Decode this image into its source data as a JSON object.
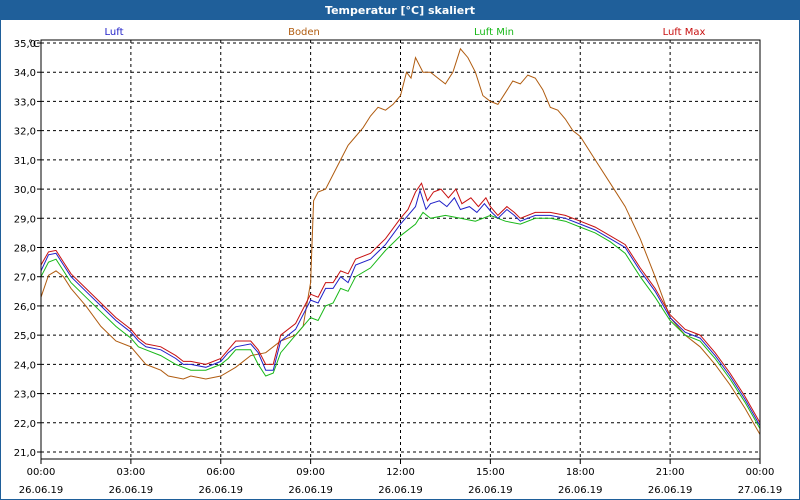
{
  "window": {
    "title": "Temperatur [°C] skaliert"
  },
  "chart_data": {
    "type": "line",
    "title": "Temperatur [°C] skaliert",
    "ylabel": "°C",
    "xlabel": "",
    "ylim": [
      21.0,
      35.0
    ],
    "xlim": [
      0,
      24
    ],
    "grid": true,
    "y_ticks": [
      "21,0",
      "22,0",
      "23,0",
      "24,0",
      "25,0",
      "26,0",
      "27,0",
      "28,0",
      "29,0",
      "30,0",
      "31,0",
      "32,0",
      "33,0",
      "34,0",
      "35,0"
    ],
    "x_ticks": [
      {
        "time": "00:00",
        "date": "26.06.19"
      },
      {
        "time": "03:00",
        "date": "26.06.19"
      },
      {
        "time": "06:00",
        "date": "26.06.19"
      },
      {
        "time": "09:00",
        "date": "26.06.19"
      },
      {
        "time": "12:00",
        "date": "26.06.19"
      },
      {
        "time": "15:00",
        "date": "26.06.19"
      },
      {
        "time": "18:00",
        "date": "26.06.19"
      },
      {
        "time": "21:00",
        "date": "26.06.19"
      },
      {
        "time": "00:00",
        "date": "27.06.19"
      }
    ],
    "series": [
      {
        "name": "Luft",
        "color": "#2020c8",
        "points": [
          [
            0,
            27.2
          ],
          [
            0.25,
            27.75
          ],
          [
            0.5,
            27.8
          ],
          [
            0.75,
            27.4
          ],
          [
            1,
            27.0
          ],
          [
            1.5,
            26.5
          ],
          [
            2,
            26.0
          ],
          [
            2.5,
            25.5
          ],
          [
            3,
            25.1
          ],
          [
            3.25,
            24.8
          ],
          [
            3.5,
            24.6
          ],
          [
            4,
            24.5
          ],
          [
            4.5,
            24.2
          ],
          [
            4.75,
            24.0
          ],
          [
            5,
            24.0
          ],
          [
            5.5,
            23.9
          ],
          [
            6,
            24.1
          ],
          [
            6.25,
            24.4
          ],
          [
            6.5,
            24.6
          ],
          [
            7,
            24.7
          ],
          [
            7.25,
            24.4
          ],
          [
            7.5,
            23.8
          ],
          [
            7.75,
            23.8
          ],
          [
            8,
            24.8
          ],
          [
            8.5,
            25.2
          ],
          [
            9,
            26.2
          ],
          [
            9.25,
            26.1
          ],
          [
            9.5,
            26.6
          ],
          [
            9.75,
            26.6
          ],
          [
            10,
            27.0
          ],
          [
            10.25,
            26.8
          ],
          [
            10.5,
            27.4
          ],
          [
            11,
            27.6
          ],
          [
            11.5,
            28.1
          ],
          [
            12,
            28.8
          ],
          [
            12.25,
            29.1
          ],
          [
            12.5,
            29.4
          ],
          [
            12.65,
            29.95
          ],
          [
            12.85,
            29.3
          ],
          [
            13,
            29.5
          ],
          [
            13.3,
            29.6
          ],
          [
            13.55,
            29.4
          ],
          [
            13.8,
            29.7
          ],
          [
            14,
            29.3
          ],
          [
            14.3,
            29.4
          ],
          [
            14.55,
            29.2
          ],
          [
            14.8,
            29.5
          ],
          [
            15,
            29.25
          ],
          [
            15.25,
            29.0
          ],
          [
            15.55,
            29.3
          ],
          [
            15.8,
            29.1
          ],
          [
            16,
            28.9
          ],
          [
            16.5,
            29.1
          ],
          [
            17,
            29.1
          ],
          [
            17.5,
            29.0
          ],
          [
            18,
            28.8
          ],
          [
            18.5,
            28.6
          ],
          [
            19,
            28.3
          ],
          [
            19.5,
            28.0
          ],
          [
            20,
            27.2
          ],
          [
            20.5,
            26.5
          ],
          [
            21,
            25.6
          ],
          [
            21.5,
            25.1
          ],
          [
            22,
            24.9
          ],
          [
            22.5,
            24.3
          ],
          [
            23,
            23.6
          ],
          [
            23.5,
            22.8
          ],
          [
            24,
            21.9
          ]
        ]
      },
      {
        "name": "Boden",
        "color": "#b05c10",
        "points": [
          [
            0,
            26.3
          ],
          [
            0.25,
            27.05
          ],
          [
            0.5,
            27.2
          ],
          [
            0.75,
            27.0
          ],
          [
            1,
            26.6
          ],
          [
            1.5,
            26.0
          ],
          [
            2,
            25.3
          ],
          [
            2.5,
            24.8
          ],
          [
            3,
            24.6
          ],
          [
            3.5,
            24.0
          ],
          [
            4,
            23.8
          ],
          [
            4.25,
            23.6
          ],
          [
            4.75,
            23.5
          ],
          [
            5,
            23.6
          ],
          [
            5.5,
            23.5
          ],
          [
            6,
            23.6
          ],
          [
            6.5,
            23.9
          ],
          [
            7,
            24.3
          ],
          [
            7.5,
            24.4
          ],
          [
            8,
            24.8
          ],
          [
            8.5,
            25.0
          ],
          [
            8.75,
            25.3
          ],
          [
            9,
            26.8
          ],
          [
            9.1,
            29.6
          ],
          [
            9.25,
            29.9
          ],
          [
            9.5,
            30.0
          ],
          [
            9.75,
            30.5
          ],
          [
            10,
            31.0
          ],
          [
            10.25,
            31.5
          ],
          [
            10.5,
            31.8
          ],
          [
            10.75,
            32.1
          ],
          [
            11,
            32.5
          ],
          [
            11.25,
            32.8
          ],
          [
            11.5,
            32.7
          ],
          [
            11.75,
            32.9
          ],
          [
            12,
            33.2
          ],
          [
            12.2,
            34.0
          ],
          [
            12.35,
            33.8
          ],
          [
            12.5,
            34.5
          ],
          [
            12.75,
            34.0
          ],
          [
            13,
            34.0
          ],
          [
            13.25,
            33.8
          ],
          [
            13.5,
            33.6
          ],
          [
            13.75,
            34.0
          ],
          [
            14,
            34.8
          ],
          [
            14.25,
            34.5
          ],
          [
            14.5,
            34.0
          ],
          [
            14.75,
            33.2
          ],
          [
            15,
            33.0
          ],
          [
            15.25,
            32.9
          ],
          [
            15.5,
            33.3
          ],
          [
            15.75,
            33.7
          ],
          [
            16,
            33.6
          ],
          [
            16.25,
            33.9
          ],
          [
            16.5,
            33.8
          ],
          [
            16.75,
            33.4
          ],
          [
            17,
            32.8
          ],
          [
            17.25,
            32.7
          ],
          [
            17.5,
            32.4
          ],
          [
            17.75,
            32.0
          ],
          [
            18,
            31.8
          ],
          [
            18.5,
            31.0
          ],
          [
            19,
            30.2
          ],
          [
            19.5,
            29.4
          ],
          [
            20,
            28.3
          ],
          [
            20.5,
            27.0
          ],
          [
            21,
            25.6
          ],
          [
            21.5,
            25.0
          ],
          [
            22,
            24.6
          ],
          [
            22.5,
            24.0
          ],
          [
            23,
            23.3
          ],
          [
            23.5,
            22.5
          ],
          [
            24,
            21.6
          ]
        ]
      },
      {
        "name": "Luft Min",
        "color": "#18b818",
        "points": [
          [
            0,
            27.0
          ],
          [
            0.25,
            27.5
          ],
          [
            0.5,
            27.6
          ],
          [
            0.75,
            27.2
          ],
          [
            1,
            26.8
          ],
          [
            1.5,
            26.3
          ],
          [
            2,
            25.8
          ],
          [
            2.5,
            25.3
          ],
          [
            3,
            24.9
          ],
          [
            3.25,
            24.6
          ],
          [
            3.5,
            24.5
          ],
          [
            4,
            24.3
          ],
          [
            4.5,
            24.0
          ],
          [
            4.75,
            23.9
          ],
          [
            5,
            23.8
          ],
          [
            5.5,
            23.8
          ],
          [
            6,
            24.0
          ],
          [
            6.25,
            24.2
          ],
          [
            6.5,
            24.5
          ],
          [
            7,
            24.5
          ],
          [
            7.25,
            24.0
          ],
          [
            7.5,
            23.6
          ],
          [
            7.75,
            23.7
          ],
          [
            8,
            24.4
          ],
          [
            8.5,
            25.0
          ],
          [
            9,
            25.6
          ],
          [
            9.25,
            25.5
          ],
          [
            9.5,
            26.0
          ],
          [
            9.75,
            26.1
          ],
          [
            10,
            26.6
          ],
          [
            10.25,
            26.5
          ],
          [
            10.5,
            27.0
          ],
          [
            11,
            27.3
          ],
          [
            11.5,
            27.9
          ],
          [
            12,
            28.4
          ],
          [
            12.5,
            28.8
          ],
          [
            12.75,
            29.2
          ],
          [
            13,
            29.0
          ],
          [
            13.5,
            29.1
          ],
          [
            14,
            29.0
          ],
          [
            14.5,
            28.9
          ],
          [
            15,
            29.1
          ],
          [
            15.5,
            28.9
          ],
          [
            16,
            28.8
          ],
          [
            16.5,
            29.0
          ],
          [
            17,
            29.0
          ],
          [
            17.5,
            28.9
          ],
          [
            18,
            28.7
          ],
          [
            18.5,
            28.5
          ],
          [
            19,
            28.2
          ],
          [
            19.5,
            27.8
          ],
          [
            20,
            27.0
          ],
          [
            20.5,
            26.3
          ],
          [
            21,
            25.5
          ],
          [
            21.5,
            25.0
          ],
          [
            22,
            24.8
          ],
          [
            22.5,
            24.2
          ],
          [
            23,
            23.5
          ],
          [
            23.5,
            22.7
          ],
          [
            24,
            21.8
          ]
        ]
      },
      {
        "name": "Luft Max",
        "color": "#c81010",
        "points": [
          [
            0,
            27.4
          ],
          [
            0.25,
            27.85
          ],
          [
            0.5,
            27.9
          ],
          [
            0.75,
            27.5
          ],
          [
            1,
            27.1
          ],
          [
            1.5,
            26.6
          ],
          [
            2,
            26.1
          ],
          [
            2.5,
            25.6
          ],
          [
            3,
            25.2
          ],
          [
            3.25,
            24.9
          ],
          [
            3.5,
            24.7
          ],
          [
            4,
            24.6
          ],
          [
            4.5,
            24.3
          ],
          [
            4.75,
            24.1
          ],
          [
            5,
            24.1
          ],
          [
            5.5,
            24.0
          ],
          [
            6,
            24.2
          ],
          [
            6.25,
            24.5
          ],
          [
            6.5,
            24.8
          ],
          [
            7,
            24.8
          ],
          [
            7.25,
            24.5
          ],
          [
            7.5,
            24.0
          ],
          [
            7.75,
            24.0
          ],
          [
            8,
            25.0
          ],
          [
            8.5,
            25.4
          ],
          [
            9,
            26.4
          ],
          [
            9.25,
            26.3
          ],
          [
            9.5,
            26.8
          ],
          [
            9.75,
            26.8
          ],
          [
            10,
            27.2
          ],
          [
            10.25,
            27.1
          ],
          [
            10.5,
            27.6
          ],
          [
            11,
            27.8
          ],
          [
            11.5,
            28.3
          ],
          [
            12,
            29.0
          ],
          [
            12.25,
            29.3
          ],
          [
            12.5,
            29.9
          ],
          [
            12.7,
            30.2
          ],
          [
            12.9,
            29.6
          ],
          [
            13.1,
            29.9
          ],
          [
            13.35,
            30.0
          ],
          [
            13.6,
            29.7
          ],
          [
            13.85,
            30.0
          ],
          [
            14.05,
            29.5
          ],
          [
            14.35,
            29.7
          ],
          [
            14.6,
            29.4
          ],
          [
            14.85,
            29.7
          ],
          [
            15,
            29.4
          ],
          [
            15.25,
            29.1
          ],
          [
            15.55,
            29.4
          ],
          [
            15.8,
            29.2
          ],
          [
            16,
            29.0
          ],
          [
            16.5,
            29.2
          ],
          [
            17,
            29.2
          ],
          [
            17.5,
            29.1
          ],
          [
            18,
            28.9
          ],
          [
            18.5,
            28.7
          ],
          [
            19,
            28.4
          ],
          [
            19.5,
            28.1
          ],
          [
            20,
            27.3
          ],
          [
            20.5,
            26.6
          ],
          [
            21,
            25.7
          ],
          [
            21.5,
            25.2
          ],
          [
            22,
            25.0
          ],
          [
            22.5,
            24.4
          ],
          [
            23,
            23.7
          ],
          [
            23.5,
            22.9
          ],
          [
            24,
            22.0
          ]
        ]
      }
    ]
  }
}
